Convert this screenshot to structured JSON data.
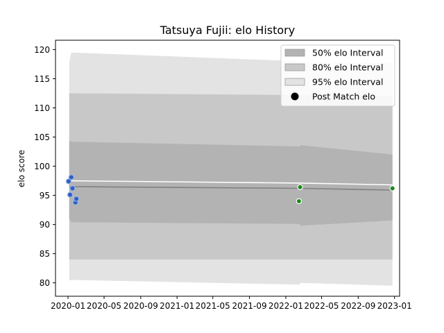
{
  "chart_data": {
    "type": "line",
    "title": "Tatsuya Fujii: elo History",
    "xlabel": "",
    "ylabel": "elo score",
    "x_tick_labels": [
      "2020-01",
      "2020-05",
      "2020-09",
      "2021-01",
      "2021-05",
      "2021-09",
      "2022-01",
      "2022-05",
      "2022-09",
      "2023-01"
    ],
    "x_ticks": [
      "2020-01-01",
      "2020-05-01",
      "2020-09-01",
      "2021-01-01",
      "2021-05-01",
      "2021-09-01",
      "2022-01-01",
      "2022-05-01",
      "2022-09-01",
      "2023-01-01"
    ],
    "xlim": [
      "2019-11-20",
      "2023-01-18"
    ],
    "y_ticks": [
      80,
      85,
      90,
      95,
      100,
      105,
      110,
      115,
      120
    ],
    "ylim": [
      77.7,
      121.6
    ],
    "legend_position": "upper right",
    "legend": [
      {
        "label": "50% elo Interval",
        "kind": "band50"
      },
      {
        "label": "80% elo Interval",
        "kind": "band80"
      },
      {
        "label": "95% elo Interval",
        "kind": "band95"
      },
      {
        "label": "Post Match elo",
        "kind": "marker"
      }
    ],
    "colors": {
      "band50": "#b3b3b3",
      "band80": "#c8c8c8",
      "band95": "#e3e3e3",
      "mean_line": "#808080",
      "prior_line": "#ffffff",
      "early_points": "#2f5fc4",
      "late_points": "#1a8a1a"
    },
    "series": [
      {
        "name": "95% elo Interval",
        "x": [
          "2020-01-05",
          "2020-01-06",
          "2020-01-12",
          "2022-02-15",
          "2022-02-20",
          "2022-12-25"
        ],
        "upper": [
          118.0,
          118.0,
          119.5,
          118.0,
          117.8,
          117.7
        ],
        "lower": [
          80.4,
          80.4,
          80.5,
          79.7,
          80.0,
          79.5
        ]
      },
      {
        "name": "80% elo Interval",
        "x": [
          "2020-01-05",
          "2020-01-06",
          "2020-01-12",
          "2022-02-15",
          "2022-02-20",
          "2022-12-25"
        ],
        "upper": [
          112.5,
          112.5,
          112.5,
          112.2,
          112.2,
          112.0
        ],
        "lower": [
          84.0,
          84.0,
          84.0,
          84.0,
          84.0,
          84.0
        ]
      },
      {
        "name": "50% elo Interval",
        "x": [
          "2020-01-05",
          "2020-01-06",
          "2020-01-12",
          "2022-02-15",
          "2022-02-20",
          "2022-12-25"
        ],
        "upper": [
          104.3,
          104.3,
          104.2,
          103.4,
          103.6,
          102.0
        ],
        "lower": [
          91.0,
          91.0,
          90.4,
          90.1,
          89.8,
          90.7
        ]
      },
      {
        "name": "mean",
        "x": [
          "2020-01-05",
          "2022-02-20",
          "2022-12-25"
        ],
        "y": [
          96.5,
          96.2,
          95.9
        ]
      },
      {
        "name": "prior",
        "x": [
          "2020-01-05",
          "2022-02-20",
          "2022-12-25"
        ],
        "y": [
          97.5,
          97.1,
          96.8
        ]
      },
      {
        "name": "Post Match elo",
        "points": [
          {
            "x": "2020-01-03",
            "y": 97.4,
            "group": "early"
          },
          {
            "x": "2020-01-08",
            "y": 95.1,
            "group": "early"
          },
          {
            "x": "2020-01-12",
            "y": 98.1,
            "group": "early"
          },
          {
            "x": "2020-01-16",
            "y": 96.2,
            "group": "early"
          },
          {
            "x": "2020-01-26",
            "y": 93.8,
            "group": "early"
          },
          {
            "x": "2020-01-29",
            "y": 94.4,
            "group": "early"
          },
          {
            "x": "2022-02-14",
            "y": 94.0,
            "group": "late"
          },
          {
            "x": "2022-02-18",
            "y": 96.4,
            "group": "late"
          },
          {
            "x": "2022-12-25",
            "y": 96.2,
            "group": "late"
          }
        ]
      }
    ]
  }
}
